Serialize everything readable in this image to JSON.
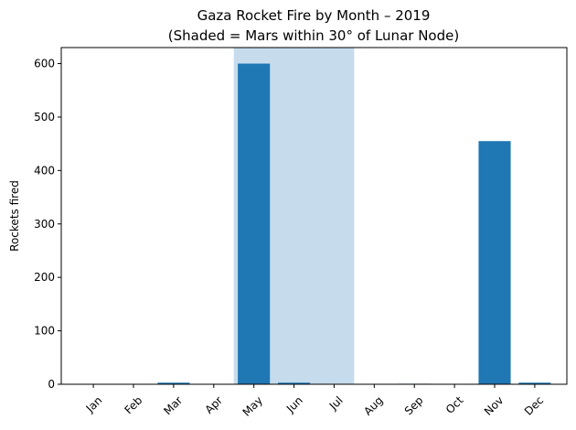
{
  "chart_data": {
    "type": "bar",
    "title_line1": "Gaza Rocket Fire by Month – 2019",
    "title_line2": "(Shaded = Mars within 30° of Lunar Node)",
    "xlabel": "",
    "ylabel": "Rockets fired",
    "categories": [
      "Jan",
      "Feb",
      "Mar",
      "Apr",
      "May",
      "Jun",
      "Jul",
      "Aug",
      "Sep",
      "Oct",
      "Nov",
      "Dec"
    ],
    "values": [
      0,
      0,
      3,
      0,
      600,
      3,
      0,
      0,
      1,
      0,
      455,
      3
    ],
    "ylim": [
      0,
      630
    ],
    "yticks": [
      0,
      100,
      200,
      300,
      400,
      500,
      600
    ],
    "shaded_span": {
      "from_category": "May",
      "to_category": "Jul"
    },
    "grid": false,
    "colors": {
      "bar": "#1f77b4",
      "shade": "#c6dcec"
    }
  }
}
